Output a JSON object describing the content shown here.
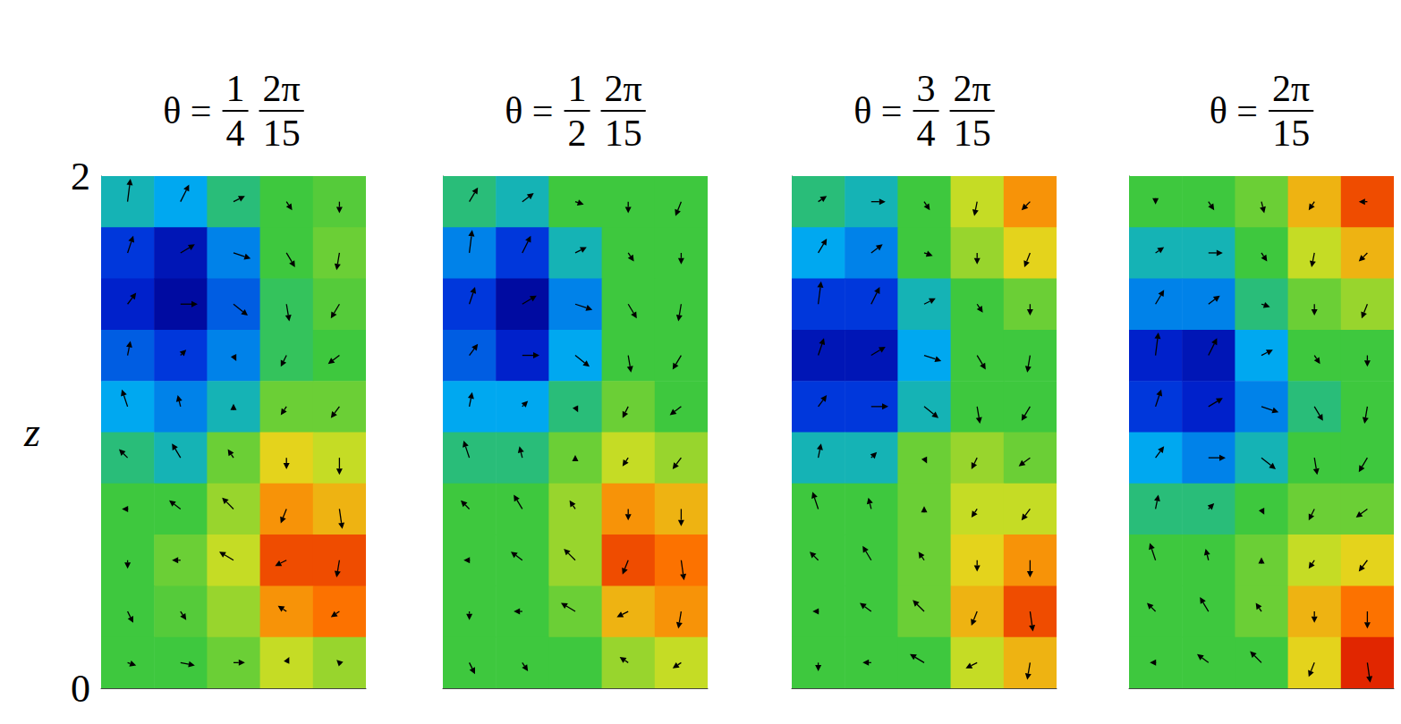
{
  "chart_data": [
    {
      "type": "heatmap",
      "title": {
        "prefix": "θ =",
        "fractions": [
          {
            "num": "1",
            "den": "4"
          },
          {
            "num": "2π",
            "den": "15"
          }
        ]
      },
      "ylabel": "z",
      "xlim": [
        0,
        1
      ],
      "ylim": [
        0,
        2
      ],
      "yticks": [
        0,
        2
      ],
      "tick_labels": "y",
      "zlim": [
        -1,
        1
      ],
      "x": [
        0.1,
        0.3,
        0.5,
        0.7,
        0.9
      ],
      "y": [
        1.9,
        1.7,
        1.5,
        1.3,
        1.1,
        0.9,
        0.7,
        0.5,
        0.3,
        0.1
      ],
      "values": [
        [
          -0.2,
          -0.3,
          -0.1,
          0,
          0.05
        ],
        [
          -0.6,
          -0.8,
          -0.4,
          0,
          0.1
        ],
        [
          -0.7,
          -0.9,
          -0.5,
          -0.05,
          0.05
        ],
        [
          -0.5,
          -0.6,
          -0.4,
          -0.05,
          0
        ],
        [
          -0.3,
          -0.4,
          -0.2,
          0.1,
          0.1
        ],
        [
          -0.1,
          -0.2,
          0.1,
          0.4,
          0.3
        ],
        [
          0,
          0,
          0.2,
          0.6,
          0.5
        ],
        [
          0,
          0.1,
          0.3,
          0.8,
          0.8
        ],
        [
          0,
          0.05,
          0.2,
          0.6,
          0.7
        ],
        [
          0,
          0,
          0.1,
          0.3,
          0.2
        ]
      ],
      "u": [
        [
          0.1,
          0.3,
          0.4,
          0.2,
          0
        ],
        [
          0.2,
          0.5,
          0.6,
          0.3,
          -0.1
        ],
        [
          0.3,
          0.6,
          0.5,
          0.1,
          -0.3
        ],
        [
          0.1,
          0.2,
          0.1,
          -0.2,
          -0.4
        ],
        [
          -0.2,
          -0.1,
          0,
          -0.2,
          -0.3
        ],
        [
          -0.3,
          -0.3,
          -0.2,
          0,
          0
        ],
        [
          -0.2,
          -0.4,
          -0.4,
          -0.2,
          0.1
        ],
        [
          0,
          -0.3,
          -0.5,
          -0.4,
          -0.1
        ],
        [
          0.2,
          0.2,
          0,
          -0.3,
          -0.3
        ],
        [
          0.3,
          0.5,
          0.4,
          0.1,
          -0.1
        ]
      ],
      "w": [
        [
          0.8,
          0.6,
          0.2,
          -0.3,
          -0.4
        ],
        [
          0.6,
          0.3,
          -0.2,
          -0.5,
          -0.6
        ],
        [
          0.4,
          0,
          -0.4,
          -0.6,
          -0.5
        ],
        [
          0.5,
          0.2,
          -0.2,
          -0.4,
          -0.3
        ],
        [
          0.6,
          0.4,
          0.1,
          -0.3,
          -0.4
        ],
        [
          0.3,
          0.5,
          0.3,
          -0.4,
          -0.6
        ],
        [
          0,
          0.3,
          0.4,
          -0.5,
          -0.7
        ],
        [
          -0.3,
          0,
          0.3,
          -0.2,
          -0.6
        ],
        [
          -0.4,
          -0.3,
          0,
          0.2,
          -0.2
        ],
        [
          -0.1,
          -0.1,
          0,
          0.2,
          0.1
        ]
      ]
    },
    {
      "type": "heatmap",
      "title": {
        "prefix": "θ =",
        "fractions": [
          {
            "num": "1",
            "den": "2"
          },
          {
            "num": "2π",
            "den": "15"
          }
        ]
      },
      "xlim": [
        0,
        1
      ],
      "ylim": [
        0,
        2
      ],
      "tick_labels": false,
      "zlim": [
        -1,
        1
      ],
      "x": [
        0.1,
        0.3,
        0.5,
        0.7,
        0.9
      ],
      "y": [
        1.9,
        1.7,
        1.5,
        1.3,
        1.1,
        0.9,
        0.7,
        0.5,
        0.3,
        0.1
      ],
      "values": [
        [
          -0.1,
          -0.2,
          0,
          0,
          0
        ],
        [
          -0.4,
          -0.6,
          -0.2,
          0,
          0
        ],
        [
          -0.6,
          -0.9,
          -0.4,
          0,
          0
        ],
        [
          -0.5,
          -0.7,
          -0.3,
          0,
          0
        ],
        [
          -0.3,
          -0.3,
          -0.1,
          0.1,
          0
        ],
        [
          -0.1,
          -0.1,
          0.1,
          0.3,
          0.2
        ],
        [
          0,
          0,
          0.2,
          0.6,
          0.5
        ],
        [
          0,
          0,
          0.2,
          0.8,
          0.7
        ],
        [
          0,
          0,
          0.1,
          0.5,
          0.6
        ],
        [
          0,
          0,
          0,
          0.2,
          0.3
        ]
      ],
      "u": [
        [
          0.3,
          0.4,
          0.3,
          0,
          -0.2
        ],
        [
          0.1,
          0.3,
          0.4,
          0.2,
          0
        ],
        [
          0.2,
          0.5,
          0.6,
          0.3,
          -0.1
        ],
        [
          0.3,
          0.6,
          0.5,
          0.1,
          -0.3
        ],
        [
          0.1,
          0.2,
          0.1,
          -0.2,
          -0.4
        ],
        [
          -0.2,
          -0.1,
          0,
          -0.2,
          -0.3
        ],
        [
          -0.3,
          -0.3,
          -0.2,
          0,
          0
        ],
        [
          -0.2,
          -0.4,
          -0.4,
          -0.2,
          0.1
        ],
        [
          0,
          -0.3,
          -0.5,
          -0.4,
          -0.1
        ],
        [
          0.2,
          0.2,
          0,
          -0.3,
          -0.3
        ]
      ],
      "w": [
        [
          0.5,
          0.3,
          -0.1,
          -0.4,
          -0.5
        ],
        [
          0.8,
          0.6,
          0.2,
          -0.3,
          -0.4
        ],
        [
          0.6,
          0.3,
          -0.2,
          -0.5,
          -0.6
        ],
        [
          0.4,
          0,
          -0.4,
          -0.6,
          -0.5
        ],
        [
          0.5,
          0.2,
          -0.2,
          -0.4,
          -0.3
        ],
        [
          0.6,
          0.4,
          0.1,
          -0.3,
          -0.4
        ],
        [
          0.3,
          0.5,
          0.3,
          -0.4,
          -0.6
        ],
        [
          0,
          0.3,
          0.4,
          -0.5,
          -0.7
        ],
        [
          -0.3,
          0,
          0.3,
          -0.2,
          -0.6
        ],
        [
          -0.4,
          -0.3,
          0,
          0.2,
          -0.2
        ]
      ]
    },
    {
      "type": "heatmap",
      "title": {
        "prefix": "θ =",
        "fractions": [
          {
            "num": "3",
            "den": "4"
          },
          {
            "num": "2π",
            "den": "15"
          }
        ]
      },
      "xlim": [
        0,
        1
      ],
      "ylim": [
        0,
        2
      ],
      "tick_labels": false,
      "zlim": [
        -1,
        1
      ],
      "x": [
        0.1,
        0.3,
        0.5,
        0.7,
        0.9
      ],
      "y": [
        1.9,
        1.7,
        1.5,
        1.3,
        1.1,
        0.9,
        0.7,
        0.5,
        0.3,
        0.1
      ],
      "values": [
        [
          -0.1,
          -0.2,
          0,
          0.3,
          0.6
        ],
        [
          -0.3,
          -0.4,
          0,
          0.2,
          0.4
        ],
        [
          -0.6,
          -0.6,
          -0.2,
          0,
          0.1
        ],
        [
          -0.8,
          -0.8,
          -0.3,
          0,
          0
        ],
        [
          -0.6,
          -0.6,
          -0.2,
          0,
          0
        ],
        [
          -0.2,
          -0.2,
          0.1,
          0.2,
          0.1
        ],
        [
          0,
          0,
          0.1,
          0.3,
          0.3
        ],
        [
          0,
          0,
          0.1,
          0.4,
          0.6
        ],
        [
          0,
          0,
          0.1,
          0.5,
          0.8
        ],
        [
          0,
          0,
          0,
          0.3,
          0.5
        ]
      ],
      "u": [
        [
          0.3,
          0.5,
          0.2,
          -0.1,
          -0.3
        ],
        [
          0.3,
          0.4,
          0.3,
          0,
          -0.2
        ],
        [
          0.1,
          0.3,
          0.4,
          0.2,
          0
        ],
        [
          0.2,
          0.5,
          0.6,
          0.3,
          -0.1
        ],
        [
          0.3,
          0.6,
          0.5,
          0.1,
          -0.3
        ],
        [
          0.1,
          0.2,
          0.1,
          -0.2,
          -0.4
        ],
        [
          -0.2,
          -0.1,
          0,
          -0.2,
          -0.3
        ],
        [
          -0.3,
          -0.3,
          -0.2,
          0,
          0
        ],
        [
          -0.2,
          -0.4,
          -0.4,
          -0.2,
          0.1
        ],
        [
          0,
          -0.3,
          -0.5,
          -0.4,
          -0.1
        ]
      ],
      "w": [
        [
          0.2,
          0,
          -0.3,
          -0.5,
          -0.3
        ],
        [
          0.5,
          0.3,
          -0.1,
          -0.4,
          -0.5
        ],
        [
          0.8,
          0.6,
          0.2,
          -0.3,
          -0.4
        ],
        [
          0.6,
          0.3,
          -0.2,
          -0.5,
          -0.6
        ],
        [
          0.4,
          0,
          -0.4,
          -0.6,
          -0.5
        ],
        [
          0.5,
          0.2,
          -0.2,
          -0.4,
          -0.3
        ],
        [
          0.6,
          0.4,
          0.1,
          -0.3,
          -0.4
        ],
        [
          0.3,
          0.5,
          0.3,
          -0.4,
          -0.6
        ],
        [
          0,
          0.3,
          0.4,
          -0.5,
          -0.7
        ],
        [
          -0.3,
          0,
          0.3,
          -0.2,
          -0.6
        ]
      ]
    },
    {
      "type": "heatmap",
      "title": {
        "prefix": "θ =",
        "fractions": [
          {
            "num": "2π",
            "den": "15"
          }
        ]
      },
      "xlim": [
        0,
        1
      ],
      "ylim": [
        0,
        2
      ],
      "tick_labels": false,
      "zlim": [
        -1,
        1
      ],
      "x": [
        0.1,
        0.3,
        0.5,
        0.7,
        0.9
      ],
      "y": [
        1.9,
        1.7,
        1.5,
        1.3,
        1.1,
        0.9,
        0.7,
        0.5,
        0.3,
        0.1
      ],
      "values": [
        [
          0,
          0,
          0.1,
          0.5,
          0.8
        ],
        [
          -0.2,
          -0.2,
          0,
          0.3,
          0.5
        ],
        [
          -0.4,
          -0.4,
          -0.1,
          0.1,
          0.2
        ],
        [
          -0.7,
          -0.8,
          -0.3,
          0,
          0
        ],
        [
          -0.6,
          -0.7,
          -0.4,
          -0.1,
          0
        ],
        [
          -0.3,
          -0.4,
          -0.2,
          0,
          0
        ],
        [
          -0.1,
          -0.1,
          0,
          0.1,
          0.1
        ],
        [
          0,
          0,
          0.1,
          0.3,
          0.4
        ],
        [
          0,
          0,
          0.1,
          0.5,
          0.7
        ],
        [
          0,
          0,
          0,
          0.4,
          0.9
        ]
      ],
      "u": [
        [
          0,
          0.2,
          0.1,
          -0.2,
          -0.3
        ],
        [
          0.3,
          0.5,
          0.2,
          -0.1,
          -0.3
        ],
        [
          0.3,
          0.4,
          0.3,
          0,
          -0.2
        ],
        [
          0.1,
          0.3,
          0.4,
          0.2,
          0
        ],
        [
          0.2,
          0.5,
          0.6,
          0.3,
          -0.1
        ],
        [
          0.3,
          0.6,
          0.5,
          0.1,
          -0.3
        ],
        [
          0.1,
          0.2,
          0.1,
          -0.2,
          -0.4
        ],
        [
          -0.2,
          -0.1,
          0,
          -0.2,
          -0.3
        ],
        [
          -0.3,
          -0.3,
          -0.2,
          0,
          0
        ],
        [
          -0.2,
          -0.4,
          -0.4,
          -0.2,
          0.1
        ]
      ],
      "w": [
        [
          -0.1,
          -0.3,
          -0.4,
          -0.3,
          0
        ],
        [
          0.2,
          0,
          -0.3,
          -0.5,
          -0.3
        ],
        [
          0.5,
          0.3,
          -0.1,
          -0.4,
          -0.5
        ],
        [
          0.8,
          0.6,
          0.2,
          -0.3,
          -0.4
        ],
        [
          0.6,
          0.3,
          -0.2,
          -0.5,
          -0.6
        ],
        [
          0.4,
          0,
          -0.4,
          -0.6,
          -0.5
        ],
        [
          0.5,
          0.2,
          -0.2,
          -0.4,
          -0.3
        ],
        [
          0.6,
          0.4,
          0.1,
          -0.3,
          -0.4
        ],
        [
          0.3,
          0.5,
          0.3,
          -0.4,
          -0.6
        ],
        [
          0,
          0.3,
          0.4,
          -0.5,
          -0.7
        ]
      ]
    }
  ]
}
